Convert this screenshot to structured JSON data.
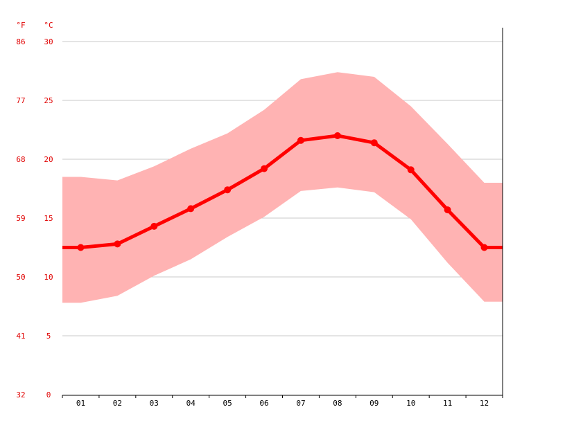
{
  "chart_data": {
    "type": "line",
    "title": "",
    "xlabel": "",
    "ylabel": "",
    "categories": [
      "01",
      "02",
      "03",
      "04",
      "05",
      "06",
      "07",
      "08",
      "09",
      "10",
      "11",
      "12"
    ],
    "ylim": [
      0,
      30
    ],
    "grid": true,
    "units": {
      "fahrenheit": "°F",
      "celsius": "°C"
    },
    "y_ticks_c": [
      "30",
      "25",
      "20",
      "15",
      "10",
      "5",
      "0"
    ],
    "y_ticks_f": [
      "86",
      "77",
      "68",
      "59",
      "50",
      "41",
      "32"
    ],
    "series": [
      {
        "values": [
          12.5,
          12.8,
          14.3,
          15.8,
          17.4,
          19.2,
          21.6,
          22.0,
          21.4,
          19.1,
          15.7,
          12.5
        ]
      }
    ],
    "range_band": {
      "upper": [
        18.5,
        18.2,
        19.4,
        20.9,
        22.2,
        24.2,
        26.8,
        27.4,
        27.0,
        24.5,
        21.3,
        18.0
      ],
      "lower": [
        7.8,
        8.4,
        10.1,
        11.5,
        13.4,
        15.1,
        17.3,
        17.6,
        17.2,
        14.9,
        11.2,
        7.9
      ]
    },
    "colors": {
      "line": "#ff0000",
      "band": "#ffb3b3",
      "tick_text": "#e00000"
    }
  }
}
